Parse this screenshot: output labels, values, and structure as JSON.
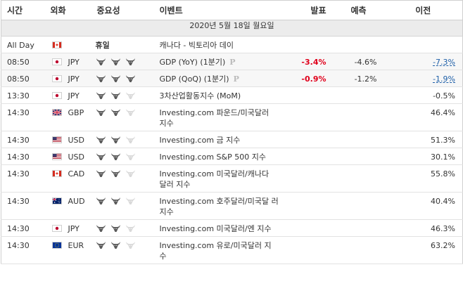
{
  "headers": {
    "time": "시간",
    "currency": "외화",
    "importance": "중요성",
    "event": "이벤트",
    "actual": "발표",
    "forecast": "예측",
    "previous": "이전"
  },
  "date_label": "2020년 5월 18일 월요일",
  "rows": [
    {
      "time": "All Day",
      "flag": "CA",
      "currency": "",
      "holiday": "휴일",
      "event": "캐나다 - 빅토리아 데이",
      "actual": "",
      "forecast": "",
      "previous": "",
      "bulls": 0,
      "hl": false
    },
    {
      "time": "08:50",
      "flag": "JP",
      "currency": "JPY",
      "holiday": "",
      "event": "GDP (YoY) (1분기)",
      "prelim": "P",
      "actual": "-3.4%",
      "forecast": "-4.6%",
      "previous": "-7.3%",
      "bulls": 3,
      "hl": true
    },
    {
      "time": "08:50",
      "flag": "JP",
      "currency": "JPY",
      "holiday": "",
      "event": "GDP (QoQ) (1분기)",
      "prelim": "P",
      "actual": "-0.9%",
      "forecast": "-1.2%",
      "previous": "-1.9%",
      "bulls": 3,
      "hl": true
    },
    {
      "time": "13:30",
      "flag": "JP",
      "currency": "JPY",
      "holiday": "",
      "event": "3차산업활동지수 (MoM)",
      "actual": "",
      "forecast": "",
      "previous": "-0.5%",
      "bulls": 2,
      "hl": false
    },
    {
      "time": "14:30",
      "flag": "GB",
      "currency": "GBP",
      "holiday": "",
      "event": "Investing.com 파운드/미국달러 지수",
      "actual": "",
      "forecast": "",
      "previous": "46.4%",
      "bulls": 2,
      "hl": false
    },
    {
      "time": "14:30",
      "flag": "US",
      "currency": "USD",
      "holiday": "",
      "event": "Investing.com 금 지수",
      "actual": "",
      "forecast": "",
      "previous": "51.3%",
      "bulls": 2,
      "hl": false
    },
    {
      "time": "14:30",
      "flag": "US",
      "currency": "USD",
      "holiday": "",
      "event": "Investing.com S&P 500 지수",
      "actual": "",
      "forecast": "",
      "previous": "30.1%",
      "bulls": 2,
      "hl": false
    },
    {
      "time": "14:30",
      "flag": "CA",
      "currency": "CAD",
      "holiday": "",
      "event": "Investing.com 미국달러/캐나다 달러 지수",
      "actual": "",
      "forecast": "",
      "previous": "55.8%",
      "bulls": 2,
      "hl": false
    },
    {
      "time": "14:30",
      "flag": "AU",
      "currency": "AUD",
      "holiday": "",
      "event": "Investing.com 호주달러/미국달 러 지수",
      "actual": "",
      "forecast": "",
      "previous": "40.4%",
      "bulls": 2,
      "hl": false
    },
    {
      "time": "14:30",
      "flag": "JP",
      "currency": "JPY",
      "holiday": "",
      "event": "Investing.com 미국달러/엔 지수",
      "actual": "",
      "forecast": "",
      "previous": "46.3%",
      "bulls": 2,
      "hl": false
    },
    {
      "time": "14:30",
      "flag": "EU",
      "currency": "EUR",
      "holiday": "",
      "event": "Investing.com 유로/미국달러 지 수",
      "actual": "",
      "forecast": "",
      "previous": "63.2%",
      "bulls": 2,
      "hl": false
    }
  ],
  "colors": {
    "negative": "#e0001b",
    "revised": "#1e5fa8",
    "bull_on": "#5a5a5a",
    "bull_off": "#d9d9d9"
  }
}
